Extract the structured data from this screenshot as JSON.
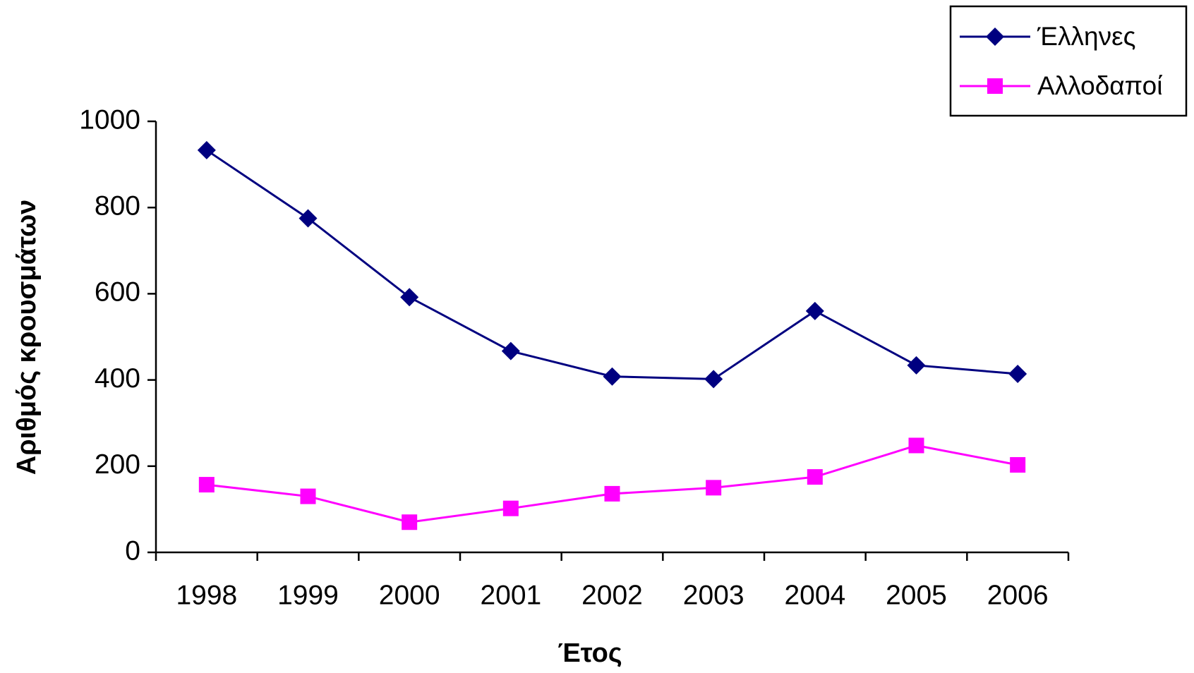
{
  "chart_data": {
    "type": "line",
    "x_label": "Έτος",
    "y_label": "Αριθμός κρουσμάτων",
    "categories": [
      "1998",
      "1999",
      "2000",
      "2001",
      "2002",
      "2003",
      "2004",
      "2005",
      "2006"
    ],
    "series": [
      {
        "name": "Έλληνες",
        "color": "#000080",
        "marker": "diamond",
        "values": [
          933,
          775,
          592,
          467,
          408,
          402,
          560,
          434,
          414
        ]
      },
      {
        "name": "Αλλοδαποί",
        "color": "#ff00ff",
        "marker": "square",
        "values": [
          157,
          130,
          70,
          102,
          136,
          150,
          175,
          248,
          203
        ]
      }
    ],
    "ylim": [
      0,
      1000
    ],
    "yticks": [
      0,
      200,
      400,
      600,
      800,
      1000
    ],
    "grid": false,
    "legend": "top-right"
  }
}
